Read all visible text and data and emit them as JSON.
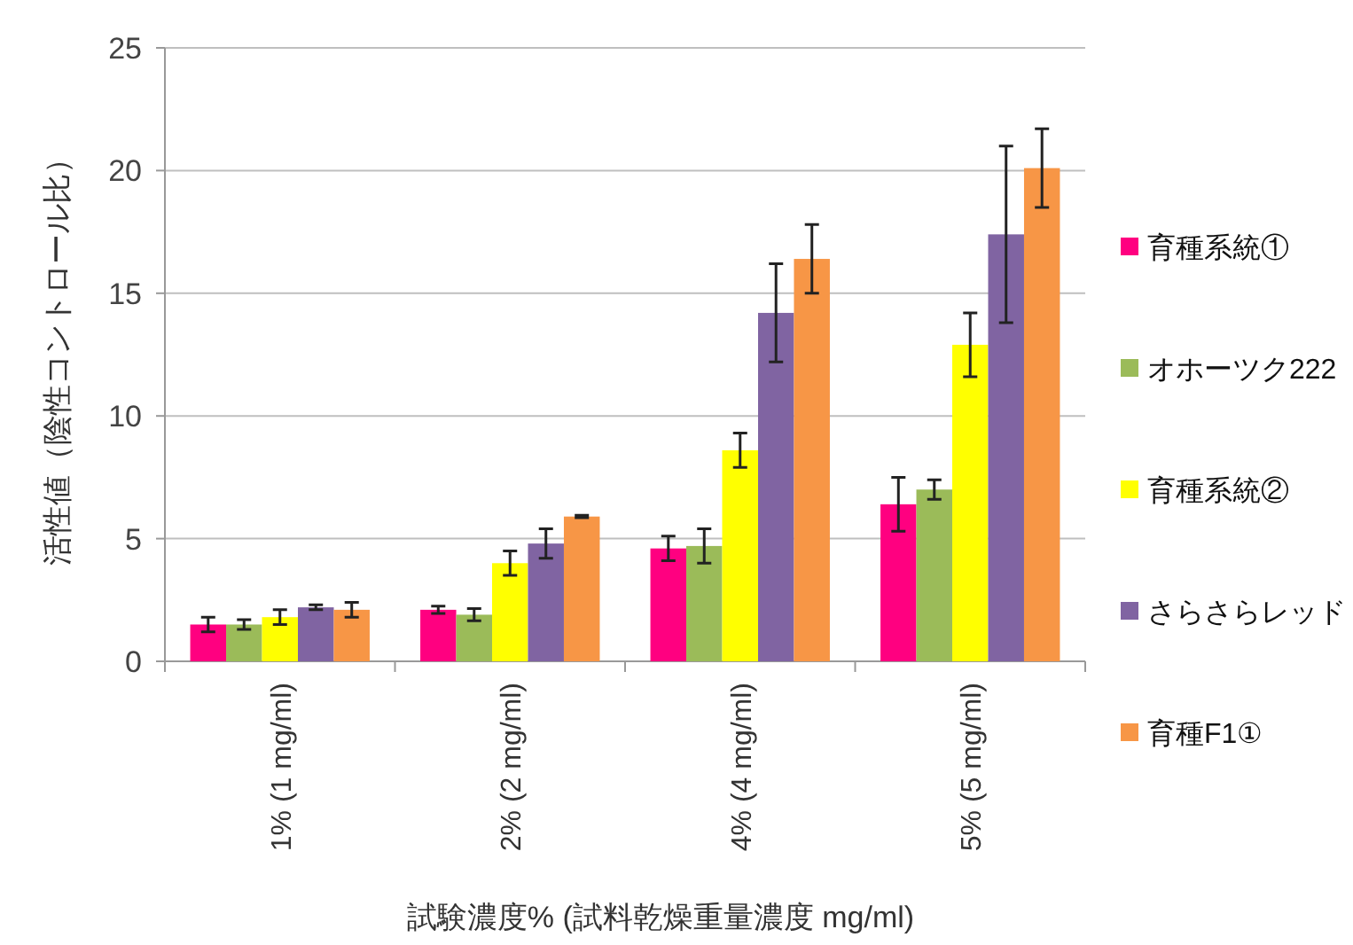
{
  "chart_data": {
    "type": "bar",
    "xlabel": "試験濃度% (試料乾燥重量濃度 mg/ml)",
    "ylabel": "活性値（陰性コントロール比）",
    "categories": [
      "1% (1 mg/ml)",
      "2% (2 mg/ml)",
      "4% (4 mg/ml)",
      "5% (5 mg/ml)"
    ],
    "ylim": [
      0,
      25
    ],
    "yticks": [
      0,
      5,
      10,
      15,
      20,
      25
    ],
    "grid": "y",
    "legend": "right",
    "series": [
      {
        "name": "育種系統①",
        "color": "#ff0080",
        "values": [
          1.5,
          2.1,
          4.6,
          6.4
        ],
        "errors": [
          0.3,
          0.15,
          0.5,
          1.1
        ]
      },
      {
        "name": "オホーツク222",
        "color": "#9bbb59",
        "values": [
          1.5,
          1.9,
          4.7,
          7.0
        ],
        "errors": [
          0.2,
          0.25,
          0.7,
          0.4
        ]
      },
      {
        "name": "育種系統②",
        "color": "#ffff00",
        "values": [
          1.8,
          4.0,
          8.6,
          12.9
        ],
        "errors": [
          0.3,
          0.5,
          0.7,
          1.3
        ]
      },
      {
        "name": "さらさらレッド",
        "color": "#8064a2",
        "values": [
          2.2,
          4.8,
          14.2,
          17.4
        ],
        "errors": [
          0.1,
          0.6,
          2.0,
          3.6
        ]
      },
      {
        "name": "育種F1①",
        "color": "#f79646",
        "values": [
          2.1,
          5.9,
          16.4,
          20.1
        ],
        "errors": [
          0.3,
          0.05,
          1.4,
          1.6
        ]
      }
    ]
  }
}
